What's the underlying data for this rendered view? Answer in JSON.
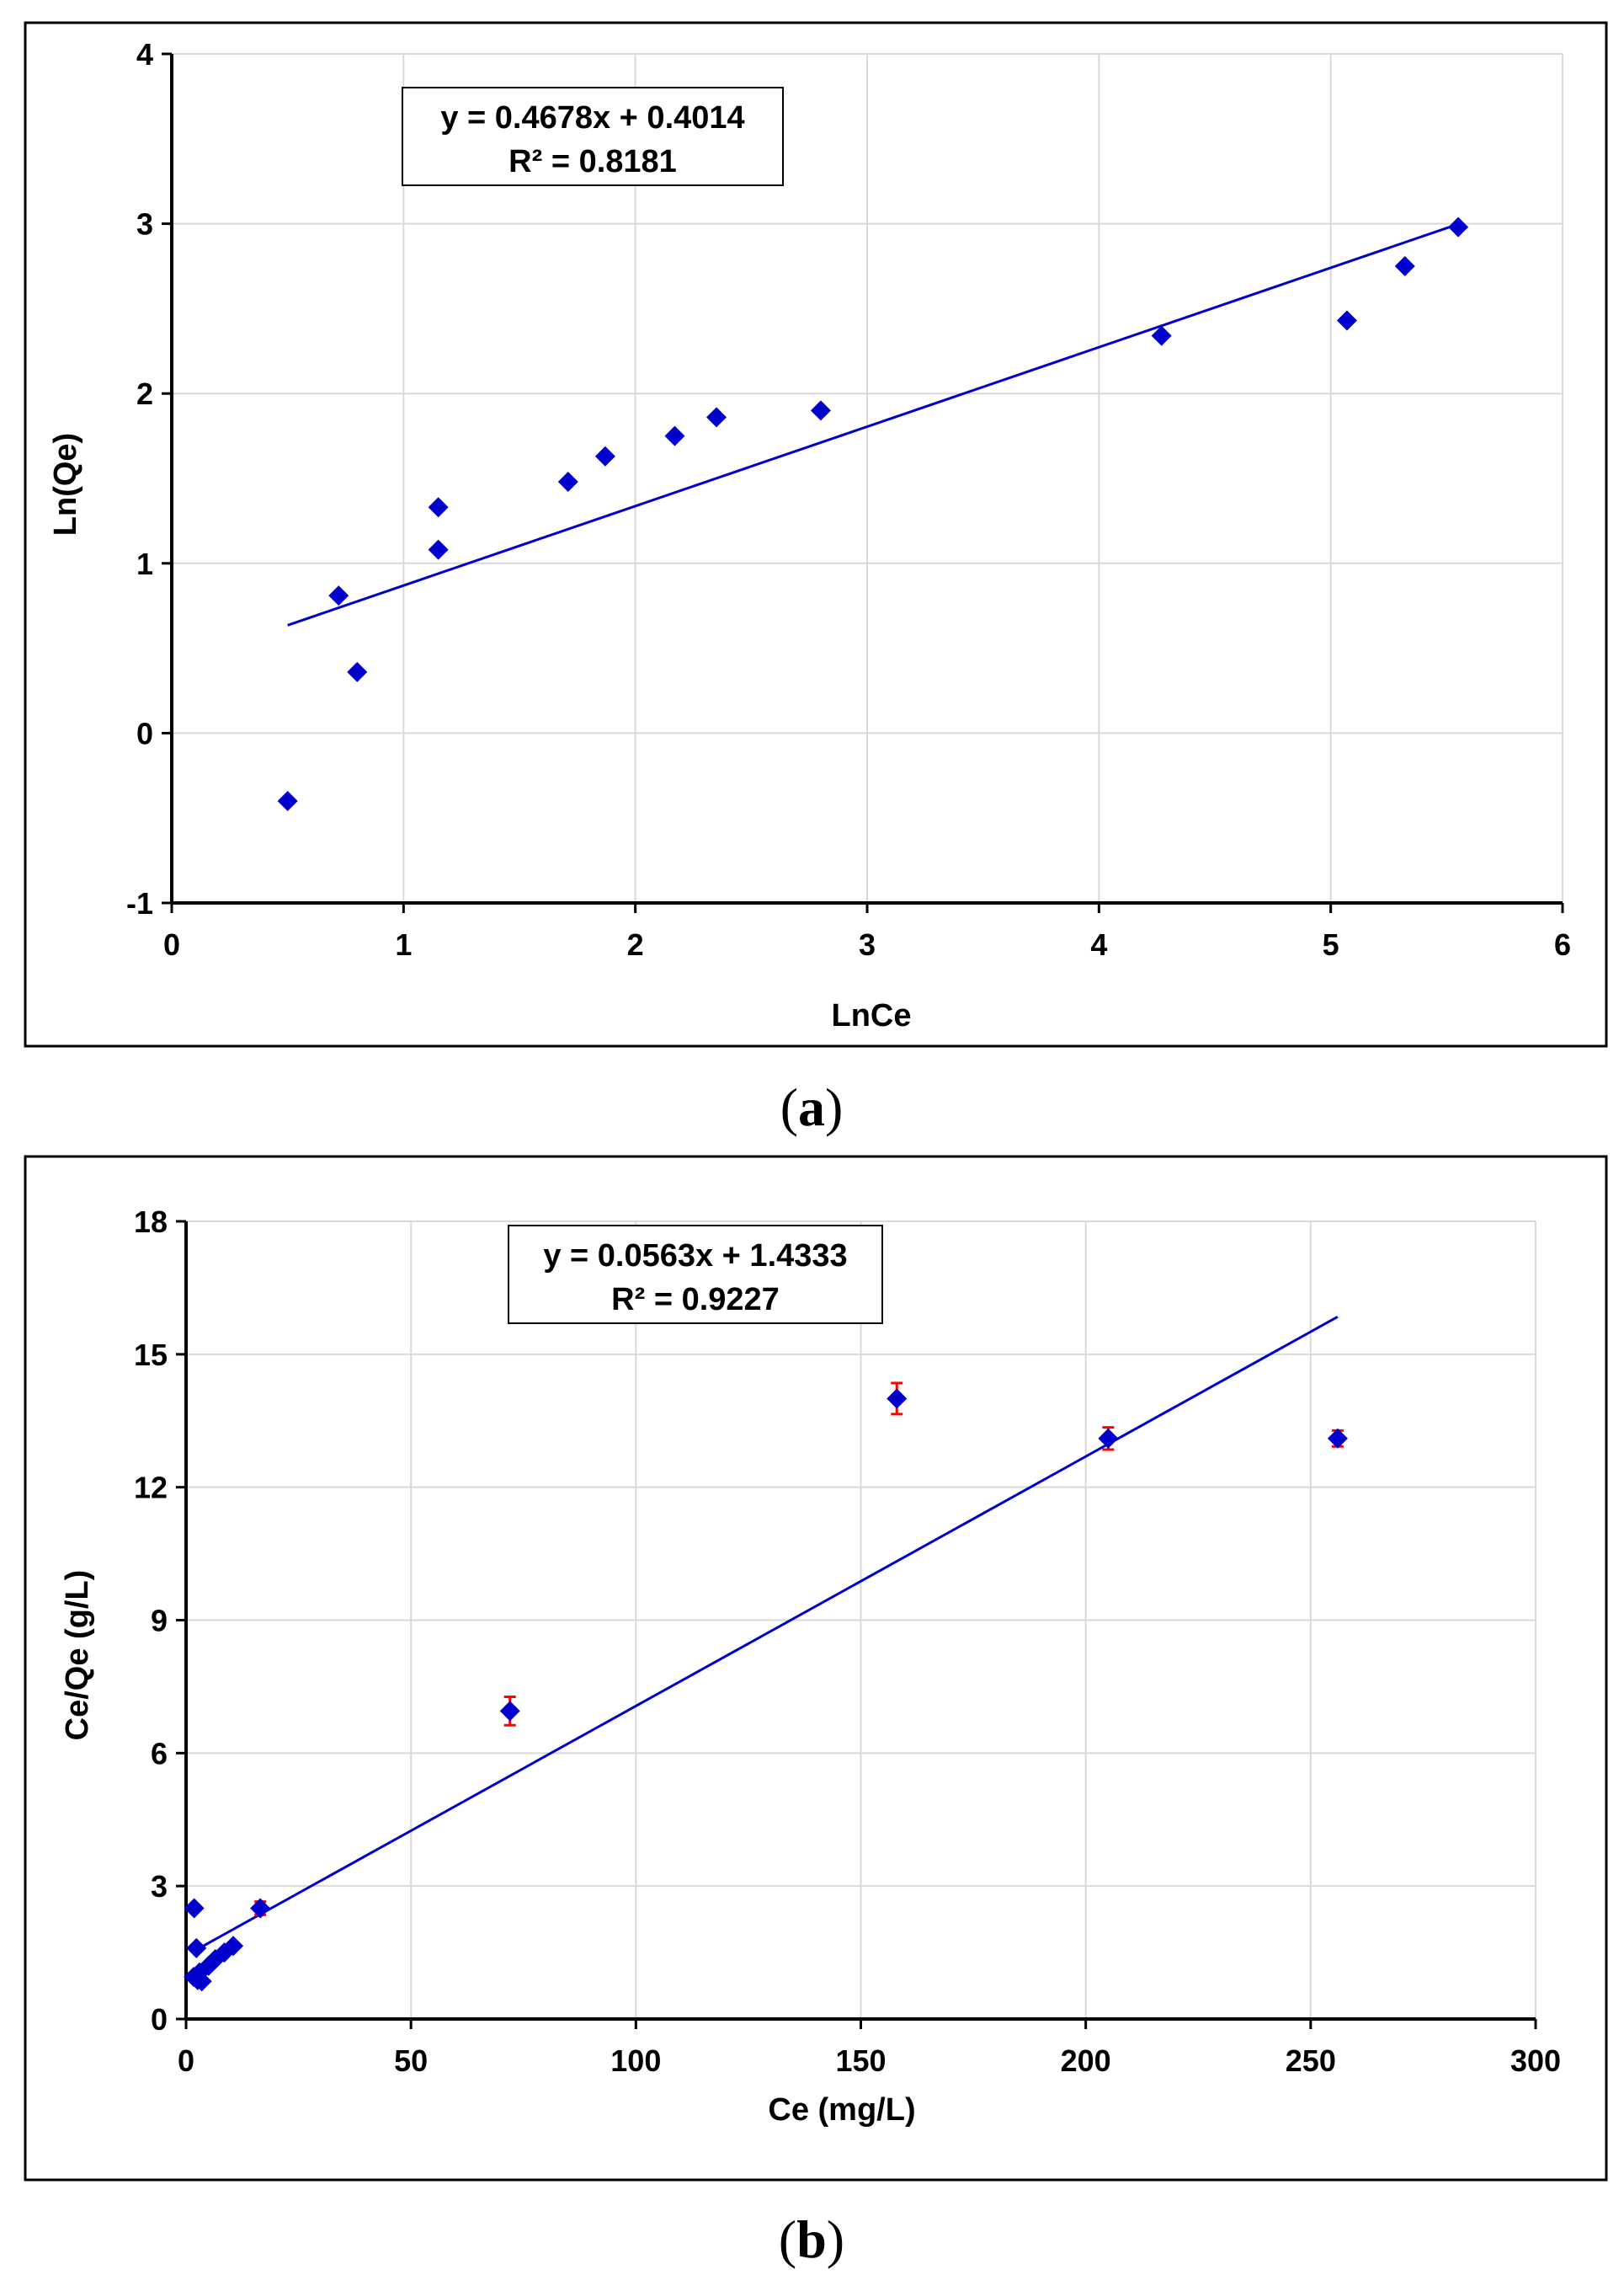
{
  "chart_data": [
    {
      "type": "scatter",
      "caption_letter": "a",
      "xlabel": "LnCe",
      "ylabel": "Ln(Qe)",
      "xlim": [
        0,
        6
      ],
      "ylim": [
        -1,
        4
      ],
      "xticks": [
        "0",
        "1",
        "2",
        "3",
        "4",
        "5",
        "6"
      ],
      "yticks": [
        "-1",
        "0",
        "1",
        "2",
        "3",
        "4"
      ],
      "grid": true,
      "marker_color": "#0000CC",
      "line_color": "#0000CC",
      "equation": "y = 0.4678x + 0.4014",
      "r_squared": "R² = 0.8181",
      "trendline": {
        "slope": 0.4678,
        "intercept": 0.4014,
        "x_range": [
          0.5,
          5.55
        ]
      },
      "points": [
        {
          "x": 0.5,
          "y": -0.4
        },
        {
          "x": 0.72,
          "y": 0.81
        },
        {
          "x": 0.8,
          "y": 0.36
        },
        {
          "x": 1.15,
          "y": 1.33
        },
        {
          "x": 1.15,
          "y": 1.08
        },
        {
          "x": 1.71,
          "y": 1.48
        },
        {
          "x": 1.87,
          "y": 1.63
        },
        {
          "x": 2.17,
          "y": 1.75
        },
        {
          "x": 2.35,
          "y": 1.86
        },
        {
          "x": 2.8,
          "y": 1.9
        },
        {
          "x": 4.27,
          "y": 2.34
        },
        {
          "x": 5.07,
          "y": 2.43
        },
        {
          "x": 5.32,
          "y": 2.75
        },
        {
          "x": 5.55,
          "y": 2.98
        }
      ]
    },
    {
      "type": "scatter",
      "caption_letter": "b",
      "xlabel": "Ce (mg/L)",
      "ylabel": "Ce/Qe (g/L)",
      "xlim": [
        0,
        300
      ],
      "ylim": [
        0,
        18
      ],
      "xticks": [
        "0",
        "50",
        "100",
        "150",
        "200",
        "250",
        "300"
      ],
      "yticks": [
        "0",
        "3",
        "6",
        "9",
        "12",
        "15",
        "18"
      ],
      "grid": true,
      "marker_color": "#0000CC",
      "line_color": "#0000CC",
      "error_color": "#FF0000",
      "equation": "y = 0.0563x + 1.4333",
      "r_squared": "R² = 0.9227",
      "trendline": {
        "slope": 0.0563,
        "intercept": 1.4333,
        "x_range": [
          1.8,
          256
        ]
      },
      "points": [
        {
          "x": 1.8,
          "y": 2.5,
          "err": 0
        },
        {
          "x": 2.3,
          "y": 1.6,
          "err": 0
        },
        {
          "x": 1.7,
          "y": 0.95,
          "err": 0
        },
        {
          "x": 2.6,
          "y": 0.88,
          "err": 0
        },
        {
          "x": 3.5,
          "y": 0.85,
          "err": 0
        },
        {
          "x": 3.0,
          "y": 1.05,
          "err": 0
        },
        {
          "x": 5.0,
          "y": 1.2,
          "err": 0
        },
        {
          "x": 6.5,
          "y": 1.35,
          "err": 0
        },
        {
          "x": 8.5,
          "y": 1.5,
          "err": 0
        },
        {
          "x": 10.5,
          "y": 1.65,
          "err": 0
        },
        {
          "x": 16.5,
          "y": 2.5,
          "err": 0.15
        },
        {
          "x": 72,
          "y": 6.95,
          "err": 0.32
        },
        {
          "x": 158,
          "y": 14.0,
          "err": 0.35
        },
        {
          "x": 205,
          "y": 13.1,
          "err": 0.25
        },
        {
          "x": 256,
          "y": 13.1,
          "err": 0.18
        }
      ]
    }
  ]
}
